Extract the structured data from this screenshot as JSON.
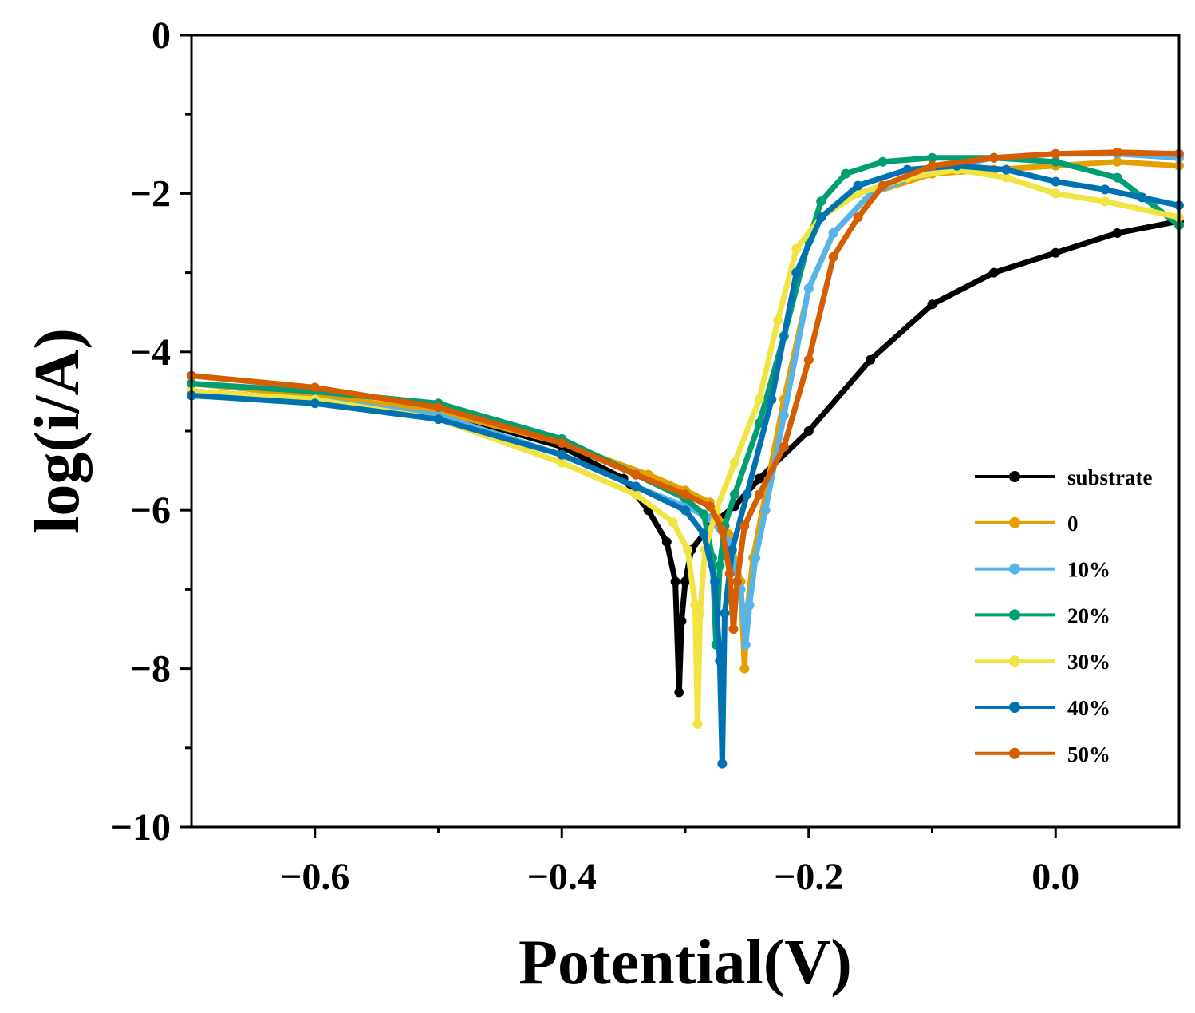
{
  "chart_data": {
    "type": "line",
    "xlabel": "Potential(V)",
    "ylabel": "log(i/A)",
    "xlim": [
      -0.7,
      0.1
    ],
    "ylim": [
      -10,
      0
    ],
    "xticks": [
      -0.6,
      -0.4,
      -0.2,
      0.0
    ],
    "xtick_labels": [
      "−0.6",
      "−0.4",
      "−0.2",
      "0.0"
    ],
    "yticks": [
      0,
      -2,
      -4,
      -6,
      -8,
      -10
    ],
    "ytick_labels": [
      "0",
      "−2",
      "−4",
      "−6",
      "−8",
      "−10"
    ],
    "legend_position": "lower-right",
    "series": [
      {
        "name": "substrate",
        "color": "#000000",
        "x": [
          -0.7,
          -0.6,
          -0.5,
          -0.4,
          -0.35,
          -0.33,
          -0.315,
          -0.308,
          -0.305,
          -0.303,
          -0.3,
          -0.295,
          -0.28,
          -0.26,
          -0.24,
          -0.2,
          -0.15,
          -0.1,
          -0.05,
          0.0,
          0.05,
          0.1
        ],
        "y": [
          -4.5,
          -4.6,
          -4.75,
          -5.2,
          -5.6,
          -6.0,
          -6.4,
          -6.9,
          -8.3,
          -7.4,
          -6.9,
          -6.5,
          -6.2,
          -5.95,
          -5.6,
          -5.0,
          -4.1,
          -3.4,
          -3.0,
          -2.75,
          -2.5,
          -2.35
        ]
      },
      {
        "name": "0",
        "color": "#E69F00",
        "x": [
          -0.7,
          -0.6,
          -0.5,
          -0.4,
          -0.33,
          -0.3,
          -0.28,
          -0.265,
          -0.255,
          -0.252,
          -0.25,
          -0.245,
          -0.235,
          -0.22,
          -0.2,
          -0.18,
          -0.15,
          -0.1,
          -0.05,
          0.0,
          0.05,
          0.1
        ],
        "y": [
          -4.4,
          -4.55,
          -4.75,
          -5.15,
          -5.55,
          -5.75,
          -5.9,
          -6.3,
          -6.9,
          -8.0,
          -7.3,
          -6.6,
          -5.8,
          -4.6,
          -3.2,
          -2.5,
          -2.0,
          -1.75,
          -1.7,
          -1.65,
          -1.6,
          -1.65
        ]
      },
      {
        "name": "10%",
        "color": "#56B4E9",
        "x": [
          -0.7,
          -0.6,
          -0.5,
          -0.4,
          -0.34,
          -0.3,
          -0.28,
          -0.265,
          -0.255,
          -0.251,
          -0.248,
          -0.243,
          -0.235,
          -0.22,
          -0.2,
          -0.18,
          -0.15,
          -0.1,
          -0.05,
          0.0,
          0.05,
          0.1
        ],
        "y": [
          -4.55,
          -4.6,
          -4.8,
          -5.3,
          -5.7,
          -5.95,
          -6.1,
          -6.4,
          -7.0,
          -7.7,
          -7.2,
          -6.6,
          -6.0,
          -4.8,
          -3.2,
          -2.5,
          -2.0,
          -1.7,
          -1.55,
          -1.5,
          -1.5,
          -1.55
        ]
      },
      {
        "name": "20%",
        "color": "#009E73",
        "x": [
          -0.7,
          -0.6,
          -0.5,
          -0.4,
          -0.34,
          -0.3,
          -0.285,
          -0.278,
          -0.275,
          -0.272,
          -0.268,
          -0.26,
          -0.24,
          -0.22,
          -0.2,
          -0.19,
          -0.17,
          -0.14,
          -0.1,
          -0.05,
          0.0,
          0.05,
          0.1
        ],
        "y": [
          -4.4,
          -4.5,
          -4.65,
          -5.1,
          -5.55,
          -5.85,
          -6.05,
          -6.6,
          -7.7,
          -6.7,
          -6.2,
          -5.8,
          -4.9,
          -3.8,
          -2.6,
          -2.1,
          -1.75,
          -1.6,
          -1.55,
          -1.55,
          -1.6,
          -1.8,
          -2.4
        ]
      },
      {
        "name": "30%",
        "color": "#F0E442",
        "x": [
          -0.7,
          -0.6,
          -0.5,
          -0.4,
          -0.34,
          -0.31,
          -0.298,
          -0.292,
          -0.29,
          -0.288,
          -0.284,
          -0.275,
          -0.26,
          -0.24,
          -0.225,
          -0.21,
          -0.19,
          -0.16,
          -0.12,
          -0.08,
          -0.04,
          0.0,
          0.04,
          0.1
        ],
        "y": [
          -4.5,
          -4.6,
          -4.85,
          -5.4,
          -5.8,
          -6.15,
          -6.5,
          -7.2,
          -8.7,
          -7.3,
          -6.5,
          -6.0,
          -5.4,
          -4.6,
          -3.6,
          -2.7,
          -2.3,
          -2.0,
          -1.8,
          -1.7,
          -1.8,
          -2.0,
          -2.1,
          -2.3
        ]
      },
      {
        "name": "40%",
        "color": "#0072B2",
        "x": [
          -0.7,
          -0.6,
          -0.5,
          -0.4,
          -0.34,
          -0.3,
          -0.285,
          -0.276,
          -0.272,
          -0.27,
          -0.268,
          -0.262,
          -0.25,
          -0.23,
          -0.21,
          -0.19,
          -0.16,
          -0.12,
          -0.08,
          -0.04,
          0.0,
          0.04,
          0.07,
          0.1
        ],
        "y": [
          -4.55,
          -4.65,
          -4.85,
          -5.3,
          -5.7,
          -6.0,
          -6.3,
          -6.9,
          -7.9,
          -9.2,
          -7.3,
          -6.5,
          -5.8,
          -4.6,
          -3.0,
          -2.3,
          -1.9,
          -1.7,
          -1.65,
          -1.7,
          -1.85,
          -1.95,
          -2.05,
          -2.15
        ]
      },
      {
        "name": "50%",
        "color": "#D55E00",
        "x": [
          -0.7,
          -0.6,
          -0.5,
          -0.4,
          -0.34,
          -0.3,
          -0.28,
          -0.27,
          -0.264,
          -0.261,
          -0.258,
          -0.252,
          -0.24,
          -0.22,
          -0.2,
          -0.18,
          -0.16,
          -0.14,
          -0.1,
          -0.05,
          0.0,
          0.05,
          0.1
        ],
        "y": [
          -4.3,
          -4.45,
          -4.7,
          -5.15,
          -5.55,
          -5.8,
          -5.95,
          -6.25,
          -6.8,
          -7.5,
          -6.9,
          -6.2,
          -5.8,
          -5.2,
          -4.1,
          -2.8,
          -2.3,
          -1.9,
          -1.65,
          -1.55,
          -1.5,
          -1.48,
          -1.5
        ]
      }
    ]
  }
}
